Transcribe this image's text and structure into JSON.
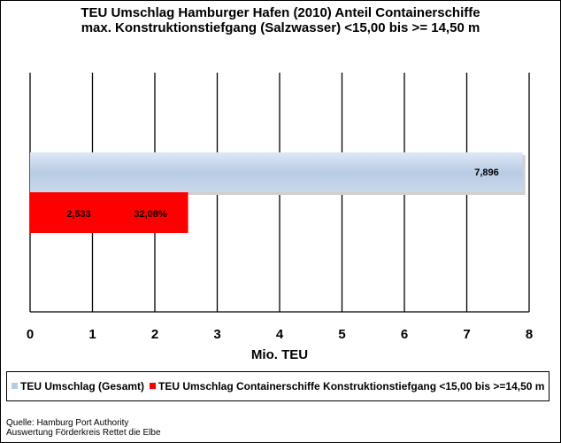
{
  "chart_data": {
    "type": "bar",
    "orientation": "horizontal",
    "title_line1": "TEU Umschlag Hamburger Hafen (2010) Anteil Containerschiffe",
    "title_line2": "max. Konstruktionstiefgang (Salzwasser) <15,00 bis >= 14,50 m",
    "xlabel": "Mio. TEU",
    "xlim": [
      0,
      8
    ],
    "xticks": [
      "0",
      "1",
      "2",
      "3",
      "4",
      "5",
      "6",
      "7",
      "8"
    ],
    "grid": "vertical",
    "legend_position": "bottom",
    "series": [
      {
        "name": "TEU Umschlag (Gesamt)",
        "value": 7.896,
        "label": "7,896",
        "color": "#b8cce4"
      },
      {
        "name": "TEU Umschlag Containerschiffe Konstruktionstiefgang <15,00 bis >=14,50 m",
        "value": 2.533,
        "label": "2,533",
        "share_label": "32,08%",
        "color": "#ff0000"
      }
    ]
  },
  "source_line1": "Quelle: Hamburg Port Authority",
  "source_line2": "Auswertung Förderkreis Rettet die Elbe"
}
